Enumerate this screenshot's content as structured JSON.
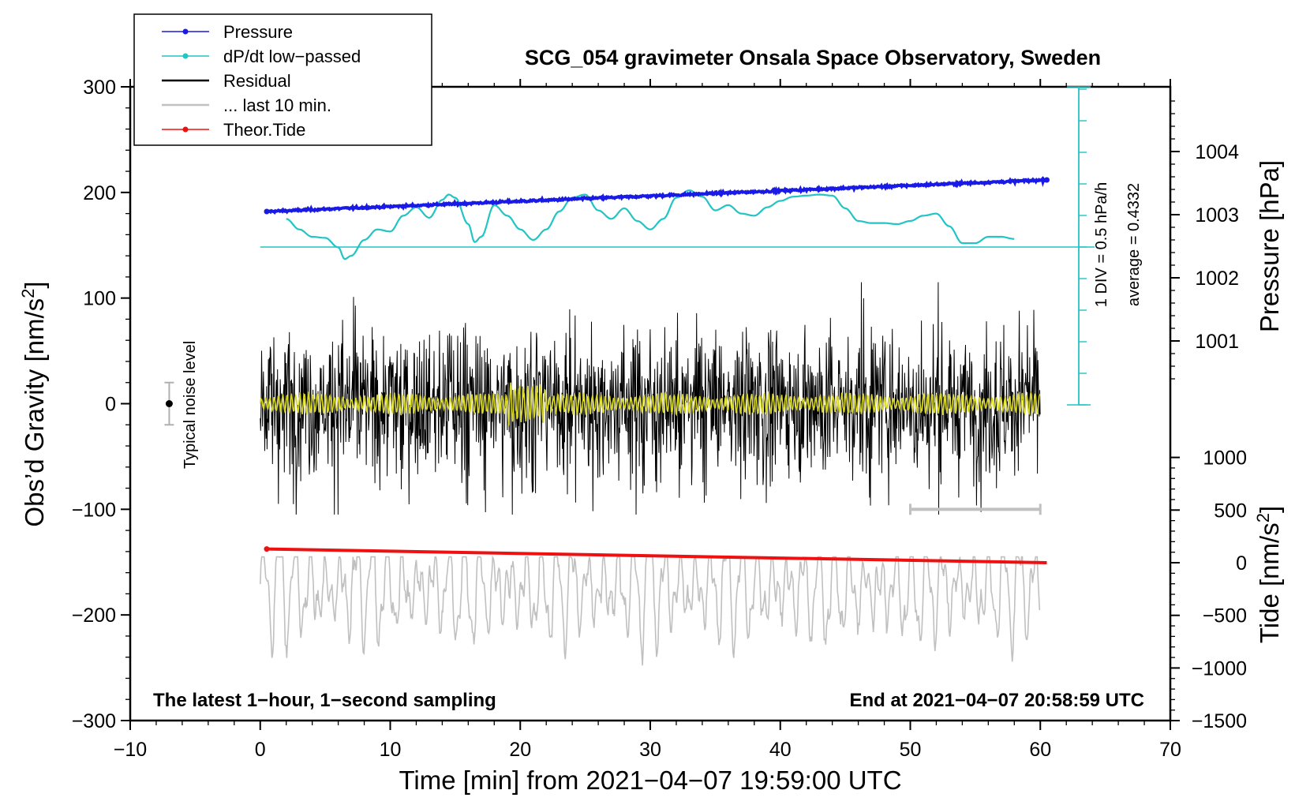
{
  "chart_data": {
    "type": "line",
    "title": "SCG_054 gravimeter Onsala Space Observatory, Sweden",
    "xlabel": "Time [min] from 2021−04−07 19:59:00 UTC",
    "ylabel_left": "Obs’d Gravity [nm/s",
    "ylabel_left_sup": "2",
    "ylabel_left_close": "]",
    "ylabel_right_pressure": "Pressure [hPa]",
    "ylabel_right_tide": "Tide [nm/s",
    "ylabel_right_tide_sup": "2",
    "ylabel_right_tide_close": "]",
    "xlim": [
      -10,
      70
    ],
    "ylim_left": [
      -300,
      300
    ],
    "x_ticks": [
      "−10",
      "0",
      "10",
      "20",
      "30",
      "40",
      "50",
      "60",
      "70"
    ],
    "y_left_ticks": [
      "300",
      "200",
      "100",
      "0",
      "−100",
      "−200",
      "−300"
    ],
    "pressure_ticks": [
      "1004",
      "1003",
      "1002",
      "1001"
    ],
    "tide_ticks": [
      "1000",
      "500",
      "0",
      "−500",
      "−1000",
      "−1500"
    ],
    "legend": [
      {
        "label": "Pressure",
        "color": "#1a1ae6",
        "marker": true
      },
      {
        "label": "dP/dt low−passed",
        "color": "#22c4c4",
        "marker": true
      },
      {
        "label": "Residual",
        "color": "#000000",
        "marker": false
      },
      {
        "label": "... last 10 min.",
        "color": "#c0c0c0",
        "marker": false
      },
      {
        "label": "Theor.Tide",
        "color": "#ee1111",
        "marker": true
      }
    ],
    "noise_label": "Typical noise level",
    "noise_range": [
      -20,
      20
    ],
    "div_label": "1 DIV = 0.5 hPa/h",
    "average_label": "average = 0.4332",
    "footer_left": "The latest 1−hour, 1−second sampling",
    "footer_right": "End at 2021−04−07 20:58:59 UTC",
    "colors": {
      "pressure": "#1a1ae6",
      "dpdt": "#22c4c4",
      "residual": "#000000",
      "last10": "#c0c0c0",
      "tide": "#ee1111",
      "filtered": "#d6d62a"
    },
    "series": [
      {
        "name": "Pressure",
        "unit": "hPa",
        "x_range_min": [
          0.5,
          60.5
        ],
        "start": 1003.05,
        "end": 1003.55
      },
      {
        "name": "dP/dt low−passed",
        "x": [
          2,
          3,
          4,
          5,
          6,
          6.5,
          7,
          8,
          9,
          10,
          11,
          12,
          13,
          14,
          14.5,
          15,
          16,
          16.5,
          17,
          18,
          19,
          20,
          21,
          22,
          23,
          24,
          25,
          26,
          27,
          28,
          29,
          30,
          31,
          32,
          33,
          34,
          35,
          36,
          37,
          38,
          39,
          40,
          41,
          42,
          43,
          44,
          45,
          46,
          47,
          48,
          49,
          50,
          51,
          52,
          53,
          54,
          55,
          56,
          57,
          58
        ],
        "y": [
          175,
          165,
          158,
          157,
          148,
          137,
          140,
          155,
          165,
          163,
          178,
          186,
          176,
          193,
          198,
          195,
          170,
          153,
          158,
          188,
          178,
          165,
          155,
          165,
          182,
          195,
          198,
          183,
          175,
          185,
          173,
          165,
          175,
          195,
          202,
          196,
          183,
          188,
          180,
          178,
          186,
          192,
          196,
          197,
          198,
          197,
          185,
          173,
          171,
          171,
          170,
          173,
          178,
          180,
          168,
          152,
          152,
          158,
          158,
          156
        ]
      },
      {
        "name": "Theor.Tide",
        "unit": "nm/s2",
        "x_range_min": [
          0.5,
          60.5
        ],
        "start": 130,
        "end": 0
      }
    ]
  }
}
